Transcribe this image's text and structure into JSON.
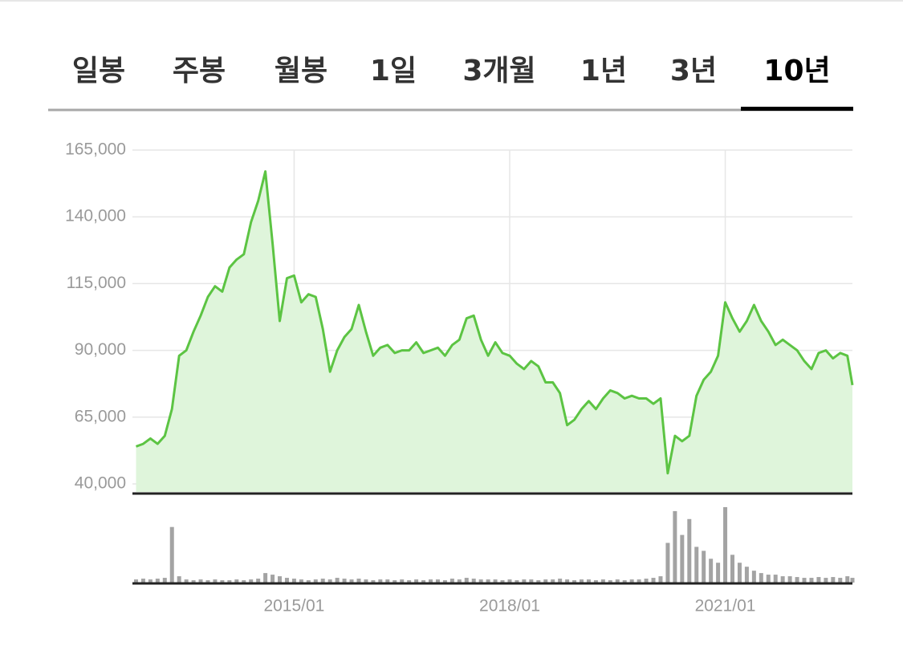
{
  "tabs": {
    "items": [
      "일봉",
      "주봉",
      "월봉",
      "1일",
      "3개월",
      "1년",
      "3년",
      "10년"
    ],
    "active": 7
  },
  "chart_data": [
    {
      "type": "area",
      "color": "#5cc443",
      "fill": "#dff5db",
      "xlim": [
        2012.75,
        2022.77
      ],
      "ylim": [
        40000,
        165000
      ],
      "yticks": [
        {
          "value": 40000,
          "label": "40,000"
        },
        {
          "value": 65000,
          "label": "65,000"
        },
        {
          "value": 90000,
          "label": "90,000"
        },
        {
          "value": 115000,
          "label": "115,000"
        },
        {
          "value": 140000,
          "label": "140,000"
        },
        {
          "value": 165000,
          "label": "165,000"
        }
      ],
      "grid": true,
      "x": [
        2012.8,
        2012.9,
        2013.0,
        2013.1,
        2013.2,
        2013.3,
        2013.4,
        2013.5,
        2013.6,
        2013.7,
        2013.8,
        2013.9,
        2014.0,
        2014.1,
        2014.2,
        2014.3,
        2014.4,
        2014.5,
        2014.6,
        2014.7,
        2014.8,
        2014.9,
        2015.0,
        2015.1,
        2015.2,
        2015.3,
        2015.4,
        2015.5,
        2015.6,
        2015.7,
        2015.8,
        2015.9,
        2016.0,
        2016.1,
        2016.2,
        2016.3,
        2016.4,
        2016.5,
        2016.6,
        2016.7,
        2016.8,
        2016.9,
        2017.0,
        2017.1,
        2017.2,
        2017.3,
        2017.4,
        2017.5,
        2017.6,
        2017.7,
        2017.8,
        2017.9,
        2018.0,
        2018.1,
        2018.2,
        2018.3,
        2018.4,
        2018.5,
        2018.6,
        2018.7,
        2018.8,
        2018.9,
        2019.0,
        2019.1,
        2019.2,
        2019.3,
        2019.4,
        2019.5,
        2019.6,
        2019.7,
        2019.8,
        2019.9,
        2020.0,
        2020.1,
        2020.2,
        2020.3,
        2020.4,
        2020.5,
        2020.6,
        2020.7,
        2020.8,
        2020.9,
        2021.0,
        2021.1,
        2021.2,
        2021.3,
        2021.4,
        2021.5,
        2021.6,
        2021.7,
        2021.8,
        2021.9,
        2022.0,
        2022.1,
        2022.2,
        2022.3,
        2022.4,
        2022.5,
        2022.6,
        2022.7,
        2022.77
      ],
      "values": [
        54000,
        55000,
        57000,
        55000,
        58000,
        68000,
        88000,
        90000,
        97000,
        103000,
        110000,
        114000,
        112000,
        121000,
        124000,
        126000,
        138000,
        146000,
        157000,
        130000,
        101000,
        117000,
        118000,
        108000,
        111000,
        110000,
        98000,
        82000,
        90000,
        95000,
        98000,
        107000,
        97000,
        88000,
        91000,
        92000,
        89000,
        90000,
        90000,
        93000,
        89000,
        90000,
        91000,
        88000,
        92000,
        94000,
        102000,
        103000,
        94000,
        88000,
        93000,
        89000,
        88000,
        85000,
        83000,
        86000,
        84000,
        78000,
        78000,
        74000,
        62000,
        64000,
        68000,
        71000,
        68000,
        72000,
        75000,
        74000,
        72000,
        73000,
        72000,
        72000,
        70000,
        72000,
        44000,
        58000,
        56000,
        58000,
        73000,
        79000,
        82000,
        88000,
        108000,
        102000,
        97000,
        101000,
        107000,
        101000,
        97000,
        92000,
        94000,
        92000,
        90000,
        86000,
        83000,
        89000,
        90000,
        87000,
        89000,
        88000,
        77000
      ]
    },
    {
      "type": "bar",
      "color": "#a3a3a3",
      "xlim": [
        2012.75,
        2022.77
      ],
      "ylim": [
        0,
        100
      ],
      "xticks": [
        {
          "value": 2015,
          "label": "2015/01"
        },
        {
          "value": 2018,
          "label": "2018/01"
        },
        {
          "value": 2021,
          "label": "2021/01"
        }
      ],
      "x": [
        2012.8,
        2012.9,
        2013.0,
        2013.1,
        2013.2,
        2013.3,
        2013.4,
        2013.5,
        2013.6,
        2013.7,
        2013.8,
        2013.9,
        2014.0,
        2014.1,
        2014.2,
        2014.3,
        2014.4,
        2014.5,
        2014.6,
        2014.7,
        2014.8,
        2014.9,
        2015.0,
        2015.1,
        2015.2,
        2015.3,
        2015.4,
        2015.5,
        2015.6,
        2015.7,
        2015.8,
        2015.9,
        2016.0,
        2016.1,
        2016.2,
        2016.3,
        2016.4,
        2016.5,
        2016.6,
        2016.7,
        2016.8,
        2016.9,
        2017.0,
        2017.1,
        2017.2,
        2017.3,
        2017.4,
        2017.5,
        2017.6,
        2017.7,
        2017.8,
        2017.9,
        2018.0,
        2018.1,
        2018.2,
        2018.3,
        2018.4,
        2018.5,
        2018.6,
        2018.7,
        2018.8,
        2018.9,
        2019.0,
        2019.1,
        2019.2,
        2019.3,
        2019.4,
        2019.5,
        2019.6,
        2019.7,
        2019.8,
        2019.9,
        2020.0,
        2020.1,
        2020.2,
        2020.3,
        2020.4,
        2020.5,
        2020.6,
        2020.7,
        2020.8,
        2020.9,
        2021.0,
        2021.1,
        2021.2,
        2021.3,
        2021.4,
        2021.5,
        2021.6,
        2021.7,
        2021.8,
        2021.9,
        2022.0,
        2022.1,
        2022.2,
        2022.3,
        2022.4,
        2022.5,
        2022.6,
        2022.7,
        2022.77
      ],
      "values": [
        4,
        5,
        4,
        5,
        6,
        70,
        8,
        4,
        3,
        4,
        3,
        4,
        3,
        3,
        4,
        3,
        4,
        5,
        12,
        10,
        8,
        6,
        5,
        4,
        3,
        4,
        5,
        4,
        6,
        5,
        4,
        5,
        4,
        3,
        4,
        4,
        3,
        4,
        3,
        4,
        3,
        4,
        4,
        3,
        5,
        4,
        6,
        5,
        4,
        4,
        4,
        3,
        4,
        3,
        4,
        4,
        3,
        4,
        4,
        5,
        4,
        3,
        4,
        4,
        3,
        4,
        3,
        4,
        3,
        4,
        4,
        5,
        6,
        8,
        50,
        90,
        60,
        80,
        45,
        40,
        30,
        25,
        95,
        35,
        25,
        20,
        15,
        12,
        10,
        10,
        8,
        8,
        7,
        6,
        6,
        7,
        6,
        7,
        6,
        8,
        6
      ]
    }
  ]
}
